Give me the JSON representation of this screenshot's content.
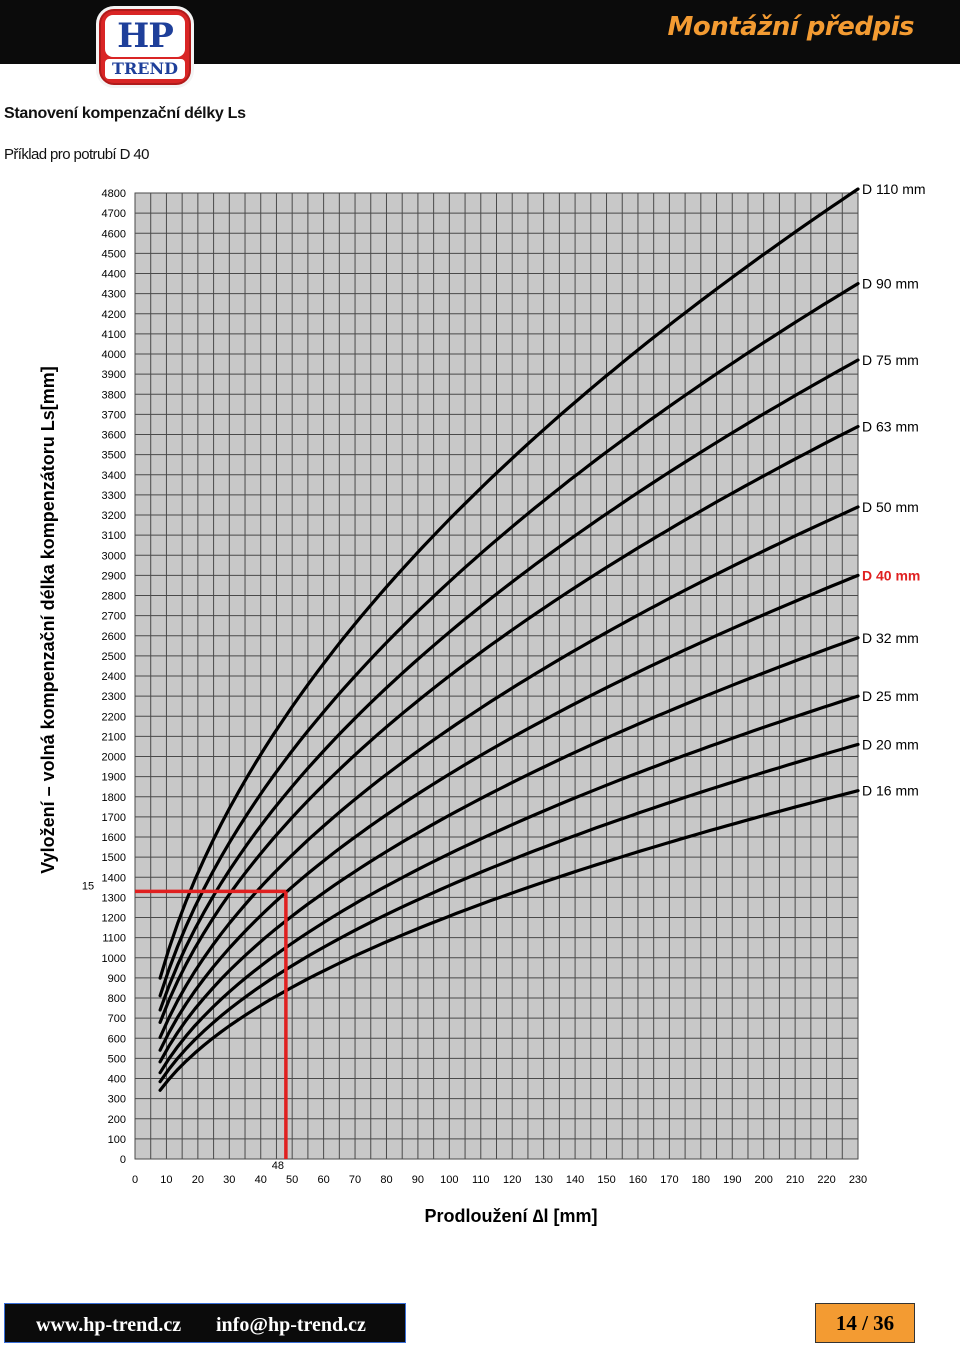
{
  "header": {
    "logo_top": "HP",
    "logo_bottom": "TREND",
    "doc_title": "Montážní předpis"
  },
  "section_heading": "Stanovení kompenzační délky Ls",
  "example_text": "Příklad pro potrubí D 40",
  "chart_data": {
    "type": "line",
    "title": "",
    "xlabel": "Prodloužení ∆l [mm]",
    "ylabel": "Vyložení – volná kompenzační délka kompenzátoru Ls[mm]",
    "xlim": [
      0,
      230
    ],
    "ylim": [
      0,
      4800
    ],
    "x_ticks": [
      0,
      10,
      20,
      30,
      40,
      50,
      60,
      70,
      80,
      90,
      100,
      110,
      120,
      130,
      140,
      150,
      160,
      170,
      180,
      190,
      200,
      210,
      220,
      230
    ],
    "y_ticks": [
      0,
      100,
      200,
      300,
      400,
      500,
      600,
      700,
      800,
      900,
      1000,
      1100,
      1200,
      1300,
      1400,
      1500,
      1600,
      1700,
      1800,
      1900,
      2000,
      2100,
      2200,
      2300,
      2400,
      2500,
      2600,
      2700,
      2800,
      2900,
      3000,
      3100,
      3200,
      3300,
      3400,
      3500,
      3600,
      3700,
      3800,
      3900,
      4000,
      4100,
      4200,
      4300,
      4400,
      4500,
      4600,
      4700,
      4800
    ],
    "grid": true,
    "legend_placement": "right",
    "x_start": 8,
    "x_end": 230,
    "series": [
      {
        "name": "D 110 mm",
        "end_value": 4820
      },
      {
        "name": "D 90 mm",
        "end_value": 4350
      },
      {
        "name": "D 75 mm",
        "end_value": 3970
      },
      {
        "name": "D 63 mm",
        "end_value": 3640
      },
      {
        "name": "D 50 mm",
        "end_value": 3240
      },
      {
        "name": "D 40 mm",
        "end_value": 2900
      },
      {
        "name": "D 32 mm",
        "end_value": 2590
      },
      {
        "name": "D 25 mm",
        "end_value": 2300
      },
      {
        "name": "D 20 mm",
        "end_value": 2060
      },
      {
        "name": "D 16 mm",
        "end_value": 1830
      }
    ],
    "highlight_series": "D 40 mm",
    "highlight_color": "#e02020",
    "example": {
      "x": 48,
      "y": 1330,
      "x_label": "48",
      "y_label": "15",
      "color": "#e02020"
    }
  },
  "footer": {
    "website": "www.hp-trend.cz",
    "email": "info@hp-trend.cz",
    "page": "14 / 36"
  }
}
